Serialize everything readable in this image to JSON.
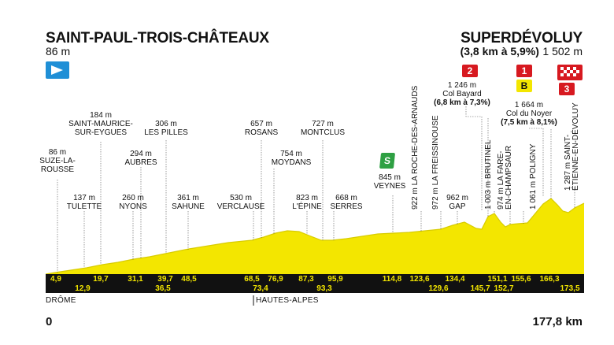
{
  "start": {
    "name": "SAINT-PAUL-TROIS-CHÂTEAUX",
    "altitude": "86 m"
  },
  "finish": {
    "name": "SUPERDÉVOLUY",
    "climb": "(3,8 km à 5,9%)",
    "altitude": "1 502 m"
  },
  "total_distance": "177,8 km",
  "start_km": "0",
  "regions": [
    "DRÔME",
    "HAUTES-ALPES"
  ],
  "badges": {
    "sprint": "S",
    "cat2": "2",
    "cat1": "1",
    "bonus": "B",
    "cat3": "3"
  },
  "places": [
    {
      "altitude": "86 m",
      "name": "SUZE-LA-\nROUSSE",
      "km": "4,9"
    },
    {
      "altitude": "137 m",
      "name": "TULETTE",
      "km": "12,9"
    },
    {
      "altitude": "184 m",
      "name": "SAINT-MAURICE-\nSUR-EYGUES",
      "km": "19,7"
    },
    {
      "altitude": "260 m",
      "name": "NYONS",
      "km": "31,1"
    },
    {
      "altitude": "294 m",
      "name": "AUBRES",
      "km": "36,5"
    },
    {
      "altitude": "306 m",
      "name": "LES PILLES",
      "km": "39,7"
    },
    {
      "altitude": "361 m",
      "name": "SAHUNE",
      "km": "48,5"
    },
    {
      "altitude": "530 m",
      "name": "VERCLAUSE",
      "km": "68,5"
    },
    {
      "altitude": "657 m",
      "name": "ROSANS",
      "km": "73,4"
    },
    {
      "altitude": "754 m",
      "name": "MOYDANS",
      "km": "76,9"
    },
    {
      "altitude": "823 m",
      "name": "L'ÉPINE",
      "km": "87,3"
    },
    {
      "altitude": "727 m",
      "name": "MONTCLUS",
      "km": "93,3"
    },
    {
      "altitude": "668 m",
      "name": "SERRES",
      "km": "95,9"
    },
    {
      "altitude": "845 m",
      "name": "VEYNES",
      "km": "114,8"
    },
    {
      "altitude": "922 m",
      "name": "LA ROCHE-DES-ARNAUDS",
      "km": "123,6"
    },
    {
      "altitude": "972 m",
      "name": "LA FREISSINOUSE",
      "km": "129,6"
    },
    {
      "altitude": "962 m",
      "name": "GAP",
      "km": "134,4"
    },
    {
      "altitude": "1 246 m",
      "name": "Col Bayard",
      "climb": "(6,8 km à 7,3%)",
      "km": "145,7"
    },
    {
      "altitude": "1 003 m",
      "name": "BRUTINEL",
      "km": "151,1"
    },
    {
      "altitude": "974 m",
      "name": "LA FARE-\nEN-CHAMPSAUR",
      "km": "152,7"
    },
    {
      "altitude": "1 061 m",
      "name": "POLIGNY",
      "km": "155,6"
    },
    {
      "altitude": "1 664 m",
      "name": "Col du Noyer",
      "climb": "(7,5 km à 8,1%)",
      "km": "166,3"
    },
    {
      "altitude": "1 287 m",
      "name": "SAINT-\nÉTIENNE-EN-DÉVOLUY",
      "km": "173,5"
    }
  ]
}
